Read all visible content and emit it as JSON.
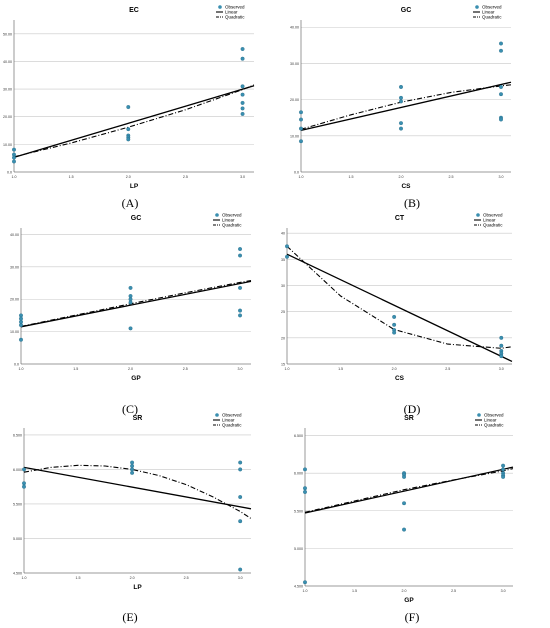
{
  "chart_data": [
    {
      "panel": "(A)",
      "type": "scatter",
      "title": "EC",
      "xlabel": "LP",
      "ylabel": "",
      "xlim": [
        1.0,
        3.1
      ],
      "ylim": [
        0,
        55
      ],
      "xticks": [
        "1.0",
        "1.5",
        "2.0",
        "2.5",
        "3.0"
      ],
      "yticks": [
        "0.0",
        "10.00",
        "20.00",
        "30.00",
        "40.00",
        "50.00"
      ],
      "ytick_values": [
        0,
        10,
        20,
        30,
        40,
        50
      ],
      "legend": [
        "Observed",
        "Linear",
        "Quadratic"
      ],
      "observed": {
        "x": [
          1,
          1,
          1,
          1,
          2,
          2,
          2,
          2,
          2,
          3,
          3,
          3,
          3,
          3,
          3,
          3
        ],
        "y": [
          8.1,
          6.3,
          5.2,
          3.8,
          23.5,
          15.5,
          13.2,
          12.5,
          11.8,
          44.5,
          41.0,
          28.0,
          25.0,
          23.0,
          21.0,
          31.0
        ]
      },
      "linear": {
        "x": [
          1.0,
          3.1
        ],
        "y": [
          5.3,
          31.2
        ]
      },
      "quadratic": {
        "x": [
          1.0,
          1.5,
          2.0,
          2.5,
          3.0,
          3.1
        ],
        "y": [
          5.5,
          10.5,
          16.2,
          22.5,
          29.8,
          31.5
        ]
      }
    },
    {
      "panel": "(B)",
      "type": "scatter",
      "title": "GC",
      "xlabel": "CS",
      "ylabel": "",
      "xlim": [
        1.0,
        3.1
      ],
      "ylim": [
        0,
        42
      ],
      "xticks": [
        "1.0",
        "1.5",
        "2.0",
        "2.5",
        "3.0"
      ],
      "yticks": [
        "0.0",
        "10.00",
        "20.00",
        "30.00",
        "40.00"
      ],
      "ytick_values": [
        0,
        10,
        20,
        30,
        40
      ],
      "legend": [
        "Observed",
        "Linear",
        "Quadratic"
      ],
      "observed": {
        "x": [
          1,
          1,
          1,
          1,
          2,
          2,
          2,
          2,
          2,
          3,
          3,
          3,
          3,
          3,
          3
        ],
        "y": [
          16.5,
          14.5,
          12.0,
          8.5,
          23.5,
          20.5,
          19.5,
          13.5,
          12.0,
          35.5,
          33.5,
          23.5,
          21.5,
          15.0,
          14.5
        ]
      },
      "linear": {
        "x": [
          1.0,
          3.1
        ],
        "y": [
          11.5,
          24.8
        ]
      },
      "quadratic": {
        "x": [
          1.0,
          1.5,
          2.0,
          2.5,
          3.0,
          3.1
        ],
        "y": [
          11.8,
          15.8,
          19.3,
          22.0,
          23.8,
          24.1
        ]
      }
    },
    {
      "panel": "(C)",
      "type": "scatter",
      "title": "GC",
      "xlabel": "GP",
      "ylabel": "",
      "xlim": [
        1.0,
        3.1
      ],
      "ylim": [
        0,
        42
      ],
      "xticks": [
        "1.0",
        "1.5",
        "2.0",
        "2.5",
        "3.0"
      ],
      "yticks": [
        "0.0",
        "10.00",
        "20.00",
        "30.00",
        "40.00"
      ],
      "ytick_values": [
        0,
        10,
        20,
        30,
        40
      ],
      "legend": [
        "Observed",
        "Linear",
        "Quadratic"
      ],
      "observed": {
        "x": [
          1,
          1,
          1,
          1,
          1,
          2,
          2,
          2,
          2,
          2,
          3,
          3,
          3,
          3,
          3
        ],
        "y": [
          15.0,
          14.0,
          13.0,
          12.0,
          7.5,
          23.5,
          21.0,
          20.0,
          19.0,
          11.0,
          35.5,
          33.5,
          23.5,
          16.5,
          15.0
        ]
      },
      "linear": {
        "x": [
          1.0,
          3.1
        ],
        "y": [
          11.5,
          25.5
        ]
      },
      "quadratic": {
        "x": [
          1.0,
          1.5,
          2.0,
          2.5,
          3.0,
          3.1
        ],
        "y": [
          11.6,
          15.1,
          18.6,
          22.0,
          25.2,
          25.8
        ]
      }
    },
    {
      "panel": "(D)",
      "type": "scatter",
      "title": "CT",
      "xlabel": "CS",
      "ylabel": "",
      "xlim": [
        1.0,
        3.1
      ],
      "ylim": [
        15,
        41
      ],
      "xticks": [
        "1.0",
        "1.5",
        "2.0",
        "2.5",
        "3.0"
      ],
      "yticks": [
        "15",
        "20",
        "25",
        "30",
        "35",
        "40"
      ],
      "ytick_values": [
        15,
        20,
        25,
        30,
        35,
        40
      ],
      "legend": [
        "Observed",
        "Linear",
        "Quadratic"
      ],
      "observed": {
        "x": [
          1,
          1,
          2,
          2,
          2,
          2,
          3,
          3,
          3,
          3,
          3
        ],
        "y": [
          37.5,
          35.5,
          24.0,
          22.5,
          21.5,
          21.0,
          20.0,
          18.5,
          17.5,
          17.0,
          16.5
        ]
      },
      "linear": {
        "x": [
          1.0,
          3.1
        ],
        "y": [
          36.0,
          15.5
        ]
      },
      "quadratic": {
        "x": [
          1.0,
          1.5,
          2.0,
          2.5,
          3.0,
          3.1
        ],
        "y": [
          37.5,
          28.0,
          21.6,
          18.8,
          18.0,
          18.3
        ]
      }
    },
    {
      "panel": "(E)",
      "type": "scatter",
      "title": "SR",
      "xlabel": "LP",
      "ylabel": "",
      "xlim": [
        1.0,
        3.1
      ],
      "ylim": [
        4.5,
        6.6
      ],
      "xticks": [
        "1.0",
        "1.5",
        "2.0",
        "2.5",
        "3.0"
      ],
      "yticks": [
        "4.500",
        "5.000",
        "5.500",
        "6.000",
        "6.500"
      ],
      "ytick_values": [
        4.5,
        5.0,
        5.5,
        6.0,
        6.5
      ],
      "legend": [
        "Observed",
        "Linear",
        "Quadratic"
      ],
      "observed": {
        "x": [
          1,
          1,
          1,
          2,
          2,
          2,
          2,
          3,
          3,
          3,
          3,
          3
        ],
        "y": [
          6.0,
          5.8,
          5.75,
          6.1,
          6.05,
          6.0,
          5.95,
          6.1,
          6.0,
          5.6,
          5.25,
          4.55
        ]
      },
      "linear": {
        "x": [
          1.0,
          3.1
        ],
        "y": [
          6.03,
          5.43
        ]
      },
      "quadratic": {
        "x": [
          1.0,
          1.25,
          1.5,
          1.75,
          2.0,
          2.25,
          2.5,
          2.75,
          3.0,
          3.1
        ],
        "y": [
          5.96,
          6.03,
          6.06,
          6.05,
          6.0,
          5.91,
          5.78,
          5.6,
          5.39,
          5.29
        ]
      }
    },
    {
      "panel": "(F)",
      "type": "scatter",
      "title": "SR",
      "xlabel": "GP",
      "ylabel": "",
      "xlim": [
        1.0,
        3.1
      ],
      "ylim": [
        4.5,
        6.6
      ],
      "xticks": [
        "1.0",
        "1.5",
        "2.0",
        "2.5",
        "3.0"
      ],
      "yticks": [
        "4.500",
        "5.000",
        "5.500",
        "6.000",
        "6.500"
      ],
      "ytick_values": [
        4.5,
        5.0,
        5.5,
        6.0,
        6.5
      ],
      "legend": [
        "Observed",
        "Linear",
        "Quadratic"
      ],
      "observed": {
        "x": [
          1,
          1,
          1,
          1,
          2,
          2,
          2,
          2,
          2,
          3,
          3,
          3,
          3,
          3
        ],
        "y": [
          6.05,
          5.8,
          5.75,
          4.55,
          6.0,
          5.98,
          5.95,
          5.6,
          5.25,
          6.1,
          6.05,
          6.0,
          5.97,
          5.95
        ]
      },
      "linear": {
        "x": [
          1.0,
          3.1
        ],
        "y": [
          5.47,
          6.08
        ]
      },
      "quadratic": {
        "x": [
          1.0,
          1.5,
          2.0,
          2.5,
          3.0,
          3.1
        ],
        "y": [
          5.48,
          5.63,
          5.78,
          5.91,
          6.03,
          6.06
        ]
      }
    }
  ],
  "colors": {
    "observed": "#3a8fb0",
    "line": "#000000",
    "grid": "#c8c8c8",
    "axis": "#555555"
  }
}
